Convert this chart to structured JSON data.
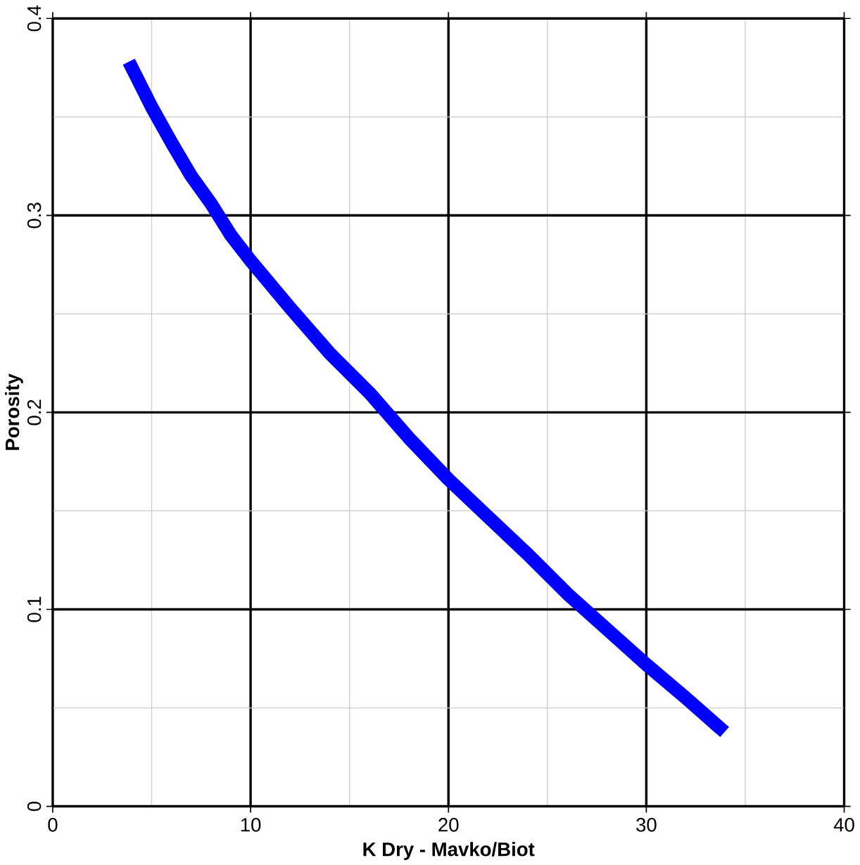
{
  "chart_data": {
    "type": "line",
    "xlabel": "K Dry - Mavko/Biot",
    "ylabel": "Porosity",
    "x": [
      4,
      5,
      6,
      7,
      8,
      9,
      10,
      12,
      14,
      16,
      18,
      20,
      22,
      24,
      26,
      28,
      30,
      32,
      33.7
    ],
    "series": [
      {
        "color": "#0000ff",
        "values": [
          0.375,
          0.355,
          0.337,
          0.32,
          0.306,
          0.29,
          0.277,
          0.253,
          0.23,
          0.21,
          0.187,
          0.166,
          0.147,
          0.128,
          0.108,
          0.09,
          0.072,
          0.055,
          0.04
        ]
      }
    ],
    "xlim": [
      0,
      40
    ],
    "ylim": [
      0,
      0.4
    ],
    "xticks": [
      0,
      10,
      20,
      30,
      40
    ],
    "yticks": [
      0,
      0.1,
      0.2,
      0.3,
      0.4
    ],
    "grid": true,
    "marker": "none",
    "line_style": "solid"
  }
}
